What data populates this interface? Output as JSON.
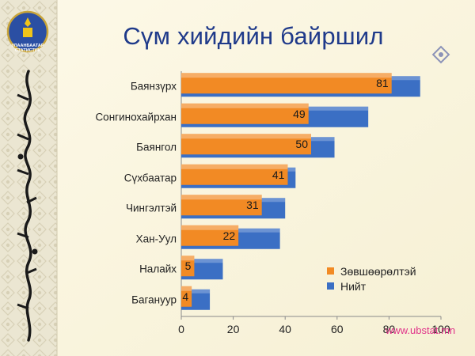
{
  "slide": {
    "title": "Сүм хийдийн байршил",
    "logo_text": [
      "УЛААНБААТАР",
      "СТАТИСТИК"
    ],
    "watermark": "www.ubstat.mn"
  },
  "colors": {
    "approved": "#f28a24",
    "total": "#3b6fc4",
    "title": "#1f3a8a",
    "ornament_panel": "#ece7d3"
  },
  "chart_data": {
    "type": "bar",
    "orientation": "horizontal",
    "title": "Сүм хийдийн байршил",
    "categories": [
      "Баянзүрх",
      "Сонгинохайрхан",
      "Баянгол",
      "Сүхбаатар",
      "Чингэлтэй",
      "Хан-Уул",
      "Налайх",
      "Багануур"
    ],
    "series": [
      {
        "name": "Зөвшөөрөлтэй",
        "values": [
          81,
          49,
          50,
          41,
          31,
          22,
          5,
          4
        ],
        "color": "#f28a24"
      },
      {
        "name": "Нийт",
        "values": [
          92,
          72,
          59,
          44,
          40,
          38,
          16,
          11
        ],
        "color": "#3b6fc4"
      }
    ],
    "data_labels": [
      "81",
      "49",
      "50",
      "41",
      "31",
      "22",
      "5",
      "4"
    ],
    "xlim": [
      0,
      100
    ],
    "xticks": [
      0,
      20,
      40,
      60,
      80,
      100
    ],
    "xtick_labels": [
      "0",
      "20",
      "40",
      "60",
      "80",
      "100"
    ],
    "legend_position": "bottom-right",
    "grid": false
  }
}
